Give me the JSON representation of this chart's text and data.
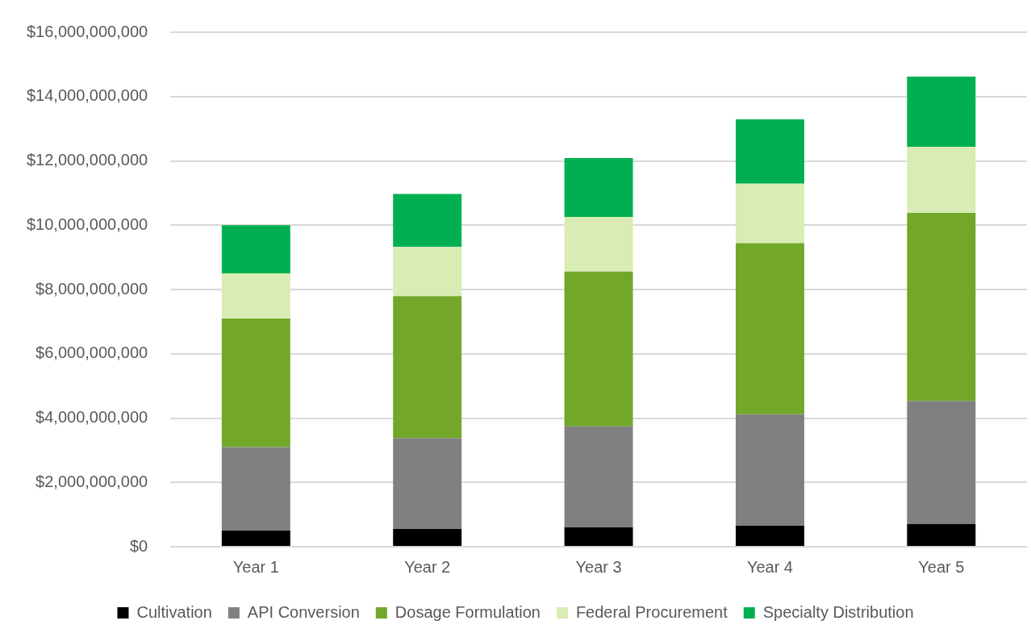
{
  "chart_data": {
    "type": "bar",
    "stacked": true,
    "categories": [
      "Year 1",
      "Year 2",
      "Year 3",
      "Year 4",
      "Year 5"
    ],
    "series": [
      {
        "name": "Cultivation",
        "color": "#000000",
        "values": [
          500000000,
          550000000,
          600000000,
          650000000,
          710000000
        ]
      },
      {
        "name": "API Conversion",
        "color": "#808080",
        "values": [
          2600000000,
          2830000000,
          3140000000,
          3470000000,
          3820000000
        ]
      },
      {
        "name": "Dosage Formulation",
        "color": "#72a72a",
        "values": [
          4000000000,
          4410000000,
          4820000000,
          5320000000,
          5850000000
        ]
      },
      {
        "name": "Federal Procurement",
        "color": "#d8ecb4",
        "values": [
          1400000000,
          1530000000,
          1700000000,
          1850000000,
          2060000000
        ]
      },
      {
        "name": "Specialty Distribution",
        "color": "#00b050",
        "values": [
          1500000000,
          1650000000,
          1830000000,
          2000000000,
          2180000000
        ]
      }
    ],
    "ylim": [
      0,
      16000000000
    ],
    "yticks": [
      {
        "value": 0,
        "label": "$0"
      },
      {
        "value": 2000000000,
        "label": "$2,000,000,000"
      },
      {
        "value": 4000000000,
        "label": "$4,000,000,000"
      },
      {
        "value": 6000000000,
        "label": "$6,000,000,000"
      },
      {
        "value": 8000000000,
        "label": "$8,000,000,000"
      },
      {
        "value": 10000000000,
        "label": "$10,000,000,000"
      },
      {
        "value": 12000000000,
        "label": "$12,000,000,000"
      },
      {
        "value": 14000000000,
        "label": "$14,000,000,000"
      },
      {
        "value": 16000000000,
        "label": "$16,000,000,000"
      }
    ],
    "grid": "y",
    "legend": "bottom"
  }
}
